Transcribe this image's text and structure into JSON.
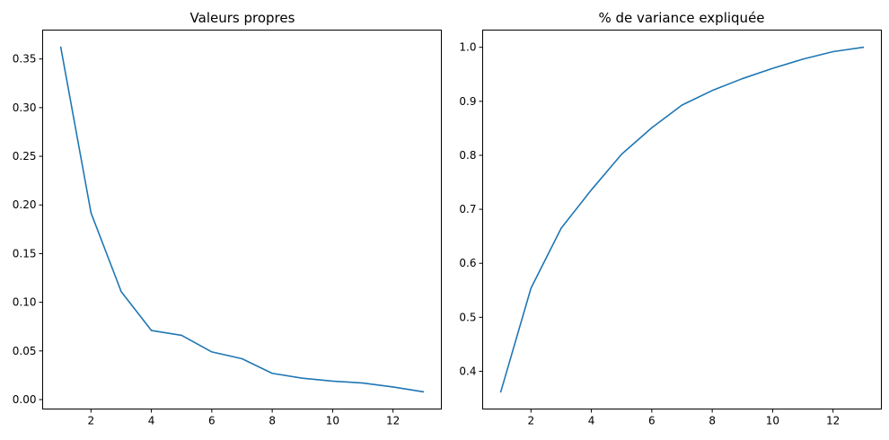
{
  "chart_data": [
    {
      "type": "line",
      "title": "Valeurs propres",
      "xlabel": "",
      "ylabel": "",
      "x": [
        1,
        2,
        3,
        4,
        5,
        6,
        7,
        8,
        9,
        10,
        11,
        12,
        13
      ],
      "series": [
        {
          "values": [
            0.362,
            0.192,
            0.111,
            0.071,
            0.066,
            0.049,
            0.042,
            0.027,
            0.022,
            0.019,
            0.017,
            0.013,
            0.008
          ]
        }
      ],
      "xlim": [
        0.4,
        13.6
      ],
      "ylim": [
        -0.0097,
        0.3797
      ],
      "xticks": [
        2,
        4,
        6,
        8,
        10,
        12
      ],
      "yticks": [
        0.0,
        0.05,
        0.1,
        0.15,
        0.2,
        0.25,
        0.3,
        0.35
      ],
      "ytick_decimals": 2,
      "grid": false,
      "line_color": "#1f77b4"
    },
    {
      "type": "line",
      "title": "% de variance expliquée",
      "xlabel": "",
      "ylabel": "",
      "x": [
        1,
        2,
        3,
        4,
        5,
        6,
        7,
        8,
        9,
        10,
        11,
        12,
        13
      ],
      "series": [
        {
          "values": [
            0.362,
            0.554,
            0.665,
            0.736,
            0.802,
            0.851,
            0.893,
            0.92,
            0.942,
            0.961,
            0.978,
            0.992,
            1.0
          ]
        }
      ],
      "xlim": [
        0.4,
        13.6
      ],
      "ylim": [
        0.3301,
        1.0319
      ],
      "xticks": [
        2,
        4,
        6,
        8,
        10,
        12
      ],
      "yticks": [
        0.4,
        0.5,
        0.6,
        0.7,
        0.8,
        0.9,
        1.0
      ],
      "ytick_decimals": 1,
      "grid": false,
      "line_color": "#1f77b4"
    }
  ]
}
